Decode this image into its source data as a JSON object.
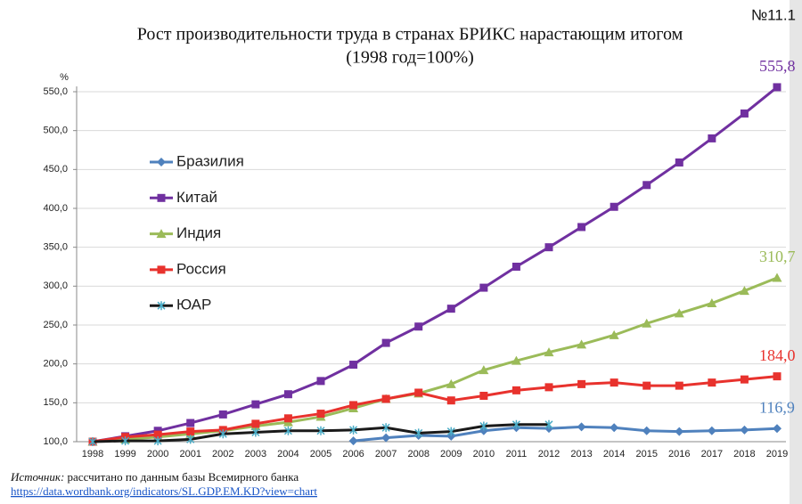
{
  "chart_data": {
    "type": "line",
    "badge": "№11.1",
    "title": "Рост производительности труда в странах БРИКС нарастающим итогом",
    "subtitle": "(1998 год=100%)",
    "y_unit": "%",
    "categories": [
      "1998",
      "1999",
      "2000",
      "2001",
      "2002",
      "2003",
      "2004",
      "2005",
      "2006",
      "2007",
      "2008",
      "2009",
      "2010",
      "2011",
      "2012",
      "2013",
      "2014",
      "2015",
      "2016",
      "2017",
      "2018",
      "2019"
    ],
    "ylim": [
      100,
      550
    ],
    "yticks": [
      {
        "value": 100,
        "label": "100,0"
      },
      {
        "value": 150,
        "label": "150,0"
      },
      {
        "value": 200,
        "label": "200,0"
      },
      {
        "value": 250,
        "label": "250,0"
      },
      {
        "value": 300,
        "label": "300,0"
      },
      {
        "value": 350,
        "label": "350,0"
      },
      {
        "value": 400,
        "label": "400,0"
      },
      {
        "value": 450,
        "label": "450,0"
      },
      {
        "value": 500,
        "label": "500,0"
      },
      {
        "value": 550,
        "label": "550,0"
      }
    ],
    "grid": true,
    "series": [
      {
        "name": "Бразилия",
        "color": "#4f81bd",
        "marker": "diamond",
        "values": [
          100,
          null,
          null,
          null,
          null,
          null,
          null,
          null,
          101,
          105,
          108,
          107,
          114,
          118,
          117,
          119,
          118,
          114,
          113,
          114,
          115,
          116.9
        ],
        "value_labels": [
          null,
          null,
          null,
          null,
          null,
          null,
          null,
          null,
          null,
          null,
          null,
          null,
          null,
          null,
          null,
          null,
          null,
          null,
          null,
          null,
          null,
          "116,9"
        ]
      },
      {
        "name": "Китай",
        "color": "#7030a0",
        "marker": "square",
        "values": [
          100,
          107,
          114,
          124,
          135,
          148,
          161,
          178,
          199,
          227,
          248,
          271,
          298,
          325,
          350,
          376,
          402,
          430,
          459,
          490,
          522,
          555.8
        ],
        "value_labels": [
          null,
          null,
          null,
          null,
          null,
          null,
          null,
          null,
          null,
          null,
          null,
          null,
          null,
          null,
          null,
          null,
          null,
          null,
          null,
          null,
          null,
          "555,8"
        ]
      },
      {
        "name": "Индия",
        "color": "#9bbb59",
        "marker": "triangle",
        "values": [
          100,
          103,
          106,
          110,
          114,
          120,
          125,
          132,
          143,
          155,
          162,
          174,
          192,
          204,
          215,
          225,
          237,
          252,
          265,
          278,
          294,
          310.7
        ],
        "value_labels": [
          null,
          null,
          null,
          null,
          null,
          null,
          null,
          null,
          null,
          null,
          null,
          null,
          null,
          null,
          null,
          null,
          null,
          null,
          null,
          null,
          null,
          "310,7"
        ]
      },
      {
        "name": "Россия",
        "color": "#e8322d",
        "marker": "square",
        "values": [
          100,
          106,
          109,
          113,
          115,
          123,
          130,
          136,
          147,
          155,
          163,
          153,
          159,
          166,
          170,
          174,
          176,
          172,
          172,
          176,
          180,
          184.0
        ],
        "value_labels": [
          null,
          null,
          null,
          null,
          null,
          null,
          null,
          null,
          null,
          null,
          null,
          null,
          null,
          null,
          null,
          null,
          null,
          null,
          null,
          null,
          null,
          "184,0"
        ]
      },
      {
        "name": "ЮАР",
        "color": "#1a1a1a",
        "marker_color": "#4bacc6",
        "marker": "star",
        "values": [
          100,
          101,
          101,
          103,
          110,
          112,
          114,
          114,
          115,
          118,
          111,
          113,
          120,
          122,
          122,
          null,
          null,
          null,
          null,
          null,
          null,
          null
        ]
      }
    ],
    "source_label": "Источник:",
    "source_text": "рассчитано по данным базы Всемирного банка",
    "source_url": "https://data.wordbank.org/indicators/SL.GDP.EM.KD?view=chart"
  }
}
